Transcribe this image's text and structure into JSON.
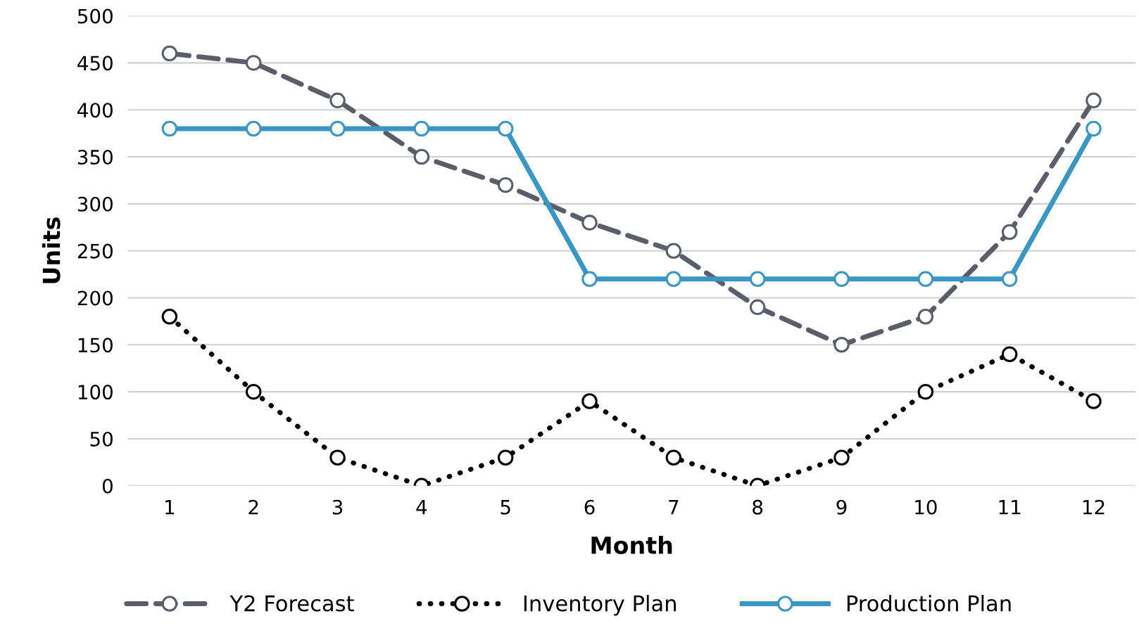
{
  "chart_data": {
    "type": "line",
    "xlabel": "Month",
    "ylabel": "Units",
    "categories": [
      "1",
      "2",
      "3",
      "4",
      "5",
      "6",
      "7",
      "8",
      "9",
      "10",
      "11",
      "12"
    ],
    "series": [
      {
        "name": "Y2 Forecast",
        "color": "#5b5e69",
        "line_style": "dashed",
        "marker": "circle",
        "values": [
          460,
          450,
          410,
          350,
          320,
          280,
          250,
          190,
          150,
          180,
          270,
          410
        ]
      },
      {
        "name": "Inventory Plan",
        "color": "#000000",
        "line_style": "dotted",
        "marker": "circle",
        "values": [
          180,
          100,
          30,
          0,
          30,
          90,
          30,
          0,
          30,
          100,
          140,
          90
        ]
      },
      {
        "name": "Production Plan",
        "color": "#3a96c2",
        "line_style": "solid",
        "marker": "circle",
        "values": [
          380,
          380,
          380,
          380,
          380,
          220,
          220,
          220,
          220,
          220,
          220,
          380
        ]
      }
    ],
    "ylim": [
      0,
      500
    ],
    "yticks": [
      0,
      50,
      100,
      150,
      200,
      250,
      300,
      350,
      400,
      450,
      500
    ],
    "grid": "y",
    "legend": "bottom"
  }
}
